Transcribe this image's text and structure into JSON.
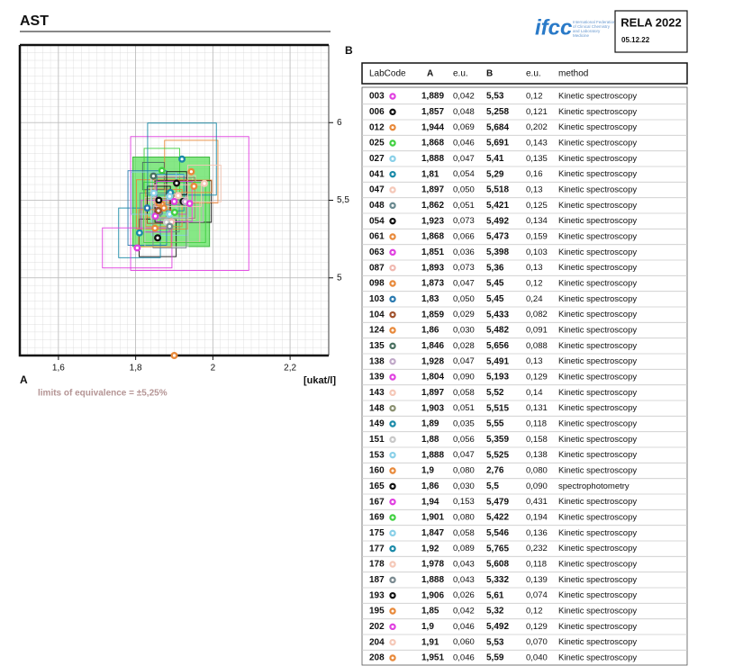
{
  "header": {
    "title": "AST",
    "logo": "ifcc",
    "logo_caption": "International Federation of Clinical Chemistry and Laboratory Medicine",
    "program": "RELA 2022",
    "date": "05.12.22"
  },
  "chart_data": {
    "type": "scatter",
    "x_label": "A",
    "y_label": "B",
    "unit": "[ukat/l]",
    "xlim": [
      1.5,
      2.3
    ],
    "ylim": [
      4.5,
      6.5
    ],
    "xticks": [
      {
        "value": 1.6,
        "label": "1,6"
      },
      {
        "value": 1.8,
        "label": "1,8"
      },
      2,
      {
        "value": 2.2,
        "label": "2,2"
      }
    ],
    "yticks": [
      5,
      {
        "value": 5.5,
        "label": "5,5"
      },
      6
    ],
    "grid": true,
    "target": [
      1.892,
      5.49
    ],
    "equivalence_percent": 5.25,
    "target_color": "#5ee05e",
    "footnote": "limits of equivalence = ±5,25%",
    "labcodes": [
      "003",
      "006",
      "012",
      "025",
      "027",
      "041",
      "047",
      "048",
      "054",
      "061",
      "063",
      "087",
      "098",
      "103",
      "104",
      "124",
      "135",
      "138",
      "139",
      "143",
      "148",
      "149",
      "151",
      "153",
      "160",
      "165",
      "167",
      "169",
      "175",
      "177",
      "178",
      "187",
      "193",
      "195",
      "202",
      "204",
      "208"
    ],
    "colors": [
      "#e040e0",
      "#111111",
      "#e8893a",
      "#40d040",
      "#8ad0e8",
      "#1a8aa8",
      "#f5c8b8",
      "#6a8a90",
      "#111111",
      "#e8893a",
      "#e040e0",
      "#f0b8b0",
      "#e8893a",
      "#2a7ab0",
      "#a0522d",
      "#e8893a",
      "#4a7060",
      "#c0a8c8",
      "#e040e0",
      "#f5c8b8",
      "#8a9070",
      "#1a8aa8",
      "#c8c8c8",
      "#8ad0e8",
      "#e8893a",
      "#111111",
      "#e040e0",
      "#40d040",
      "#8ad0e8",
      "#1a8aa8",
      "#f5c8b8",
      "#7a8a90",
      "#111111",
      "#e8893a",
      "#e040e0",
      "#f5c8b8",
      "#e8893a"
    ],
    "x": [
      1.889,
      1.857,
      1.944,
      1.868,
      1.888,
      1.81,
      1.897,
      1.862,
      1.923,
      1.868,
      1.851,
      1.893,
      1.873,
      1.83,
      1.859,
      1.86,
      1.846,
      1.928,
      1.804,
      1.897,
      1.903,
      1.89,
      1.88,
      1.888,
      1.9,
      1.86,
      1.94,
      1.901,
      1.847,
      1.92,
      1.978,
      1.888,
      1.906,
      1.85,
      1.9,
      1.91,
      1.951
    ],
    "x_labels": [
      "1,889",
      "1,857",
      "1,944",
      "1,868",
      "1,888",
      "1,81",
      "1,897",
      "1,862",
      "1,923",
      "1,868",
      "1,851",
      "1,893",
      "1,873",
      "1,83",
      "1,859",
      "1,86",
      "1,846",
      "1,928",
      "1,804",
      "1,897",
      "1,903",
      "1,89",
      "1,88",
      "1,888",
      "1,9",
      "1,86",
      "1,94",
      "1,901",
      "1,847",
      "1,92",
      "1,978",
      "1,888",
      "1,906",
      "1,85",
      "1,9",
      "1,91",
      "1,951"
    ],
    "x_err": [
      0.042,
      0.048,
      0.069,
      0.046,
      0.047,
      0.054,
      0.05,
      0.051,
      0.073,
      0.066,
      0.036,
      0.073,
      0.047,
      0.05,
      0.029,
      0.03,
      0.028,
      0.047,
      0.09,
      0.058,
      0.051,
      0.035,
      0.056,
      0.047,
      0.08,
      0.03,
      0.153,
      0.08,
      0.058,
      0.089,
      0.043,
      0.043,
      0.026,
      0.042,
      0.046,
      0.06,
      0.046
    ],
    "x_err_labels": [
      "0,042",
      "0,048",
      "0,069",
      "0,046",
      "0,047",
      "0,054",
      "0,050",
      "0,051",
      "0,073",
      "0,066",
      "0,036",
      "0,073",
      "0,047",
      "0,050",
      "0,029",
      "0,030",
      "0,028",
      "0,047",
      "0,090",
      "0,058",
      "0,051",
      "0,035",
      "0,056",
      "0,047",
      "0,080",
      "0,030",
      "0,153",
      "0,080",
      "0,058",
      "0,089",
      "0,043",
      "0,043",
      "0,026",
      "0,042",
      "0,046",
      "0,060",
      "0,046"
    ],
    "values": [
      5.53,
      5.258,
      5.684,
      5.691,
      5.41,
      5.29,
      5.518,
      5.421,
      5.492,
      5.473,
      5.398,
      5.36,
      5.45,
      5.45,
      5.433,
      5.482,
      5.656,
      5.491,
      5.193,
      5.52,
      5.515,
      5.55,
      5.359,
      5.525,
      2.76,
      5.5,
      5.479,
      5.422,
      5.546,
      5.765,
      5.608,
      5.332,
      5.61,
      5.32,
      5.492,
      5.53,
      5.59
    ],
    "value_labels": [
      "5,53",
      "5,258",
      "5,684",
      "5,691",
      "5,41",
      "5,29",
      "5,518",
      "5,421",
      "5,492",
      "5,473",
      "5,398",
      "5,36",
      "5,45",
      "5,45",
      "5,433",
      "5,482",
      "5,656",
      "5,491",
      "5,193",
      "5,52",
      "5,515",
      "5,55",
      "5,359",
      "5,525",
      "2,76",
      "5,5",
      "5,479",
      "5,422",
      "5,546",
      "5,765",
      "5,608",
      "5,332",
      "5,61",
      "5,32",
      "5,492",
      "5,53",
      "5,59"
    ],
    "y_err": [
      0.12,
      0.121,
      0.202,
      0.143,
      0.135,
      0.16,
      0.13,
      0.125,
      0.134,
      0.159,
      0.103,
      0.13,
      0.12,
      0.24,
      0.082,
      0.091,
      0.088,
      0.13,
      0.129,
      0.14,
      0.131,
      0.118,
      0.158,
      0.138,
      0.08,
      0.09,
      0.431,
      0.194,
      0.136,
      0.232,
      0.118,
      0.139,
      0.074,
      0.12,
      0.129,
      0.07,
      0.04
    ],
    "y_err_labels": [
      "0,12",
      "0,121",
      "0,202",
      "0,143",
      "0,135",
      "0,16",
      "0,13",
      "0,125",
      "0,134",
      "0,159",
      "0,103",
      "0,13",
      "0,12",
      "0,24",
      "0,082",
      "0,091",
      "0,088",
      "0,13",
      "0,129",
      "0,14",
      "0,131",
      "0,118",
      "0,158",
      "0,138",
      "0,080",
      "0,090",
      "0,431",
      "0,194",
      "0,136",
      "0,232",
      "0,118",
      "0,139",
      "0,074",
      "0,12",
      "0,129",
      "0,070",
      "0,040"
    ],
    "methods": [
      "Kinetic spectroscopy",
      "Kinetic spectroscopy",
      "Kinetic spectroscopy",
      "Kinetic spectroscopy",
      "Kinetic spectroscopy",
      "Kinetic spectroscopy",
      "Kinetic spectroscopy",
      "Kinetic spectroscopy",
      "Kinetic spectroscopy",
      "Kinetic spectroscopy",
      "Kinetic spectroscopy",
      "Kinetic spectroscopy",
      "Kinetic spectroscopy",
      "Kinetic spectroscopy",
      "Kinetic spectroscopy",
      "Kinetic spectroscopy",
      "Kinetic spectroscopy",
      "Kinetic spectroscopy",
      "Kinetic spectroscopy",
      "Kinetic spectroscopy",
      "Kinetic spectroscopy",
      "Kinetic spectroscopy",
      "Kinetic spectroscopy",
      "Kinetic spectroscopy",
      "Kinetic spectroscopy",
      "spectrophotometry",
      "Kinetic spectroscopy",
      "Kinetic spectroscopy",
      "Kinetic spectroscopy",
      "Kinetic spectroscopy",
      "Kinetic spectroscopy",
      "Kinetic spectroscopy",
      "Kinetic spectroscopy",
      "Kinetic spectroscopy",
      "Kinetic spectroscopy",
      "Kinetic spectroscopy",
      "Kinetic spectroscopy"
    ]
  },
  "table": {
    "columns": [
      "LabCode",
      "A",
      "e.u.",
      "B",
      "e.u.",
      "method"
    ]
  }
}
